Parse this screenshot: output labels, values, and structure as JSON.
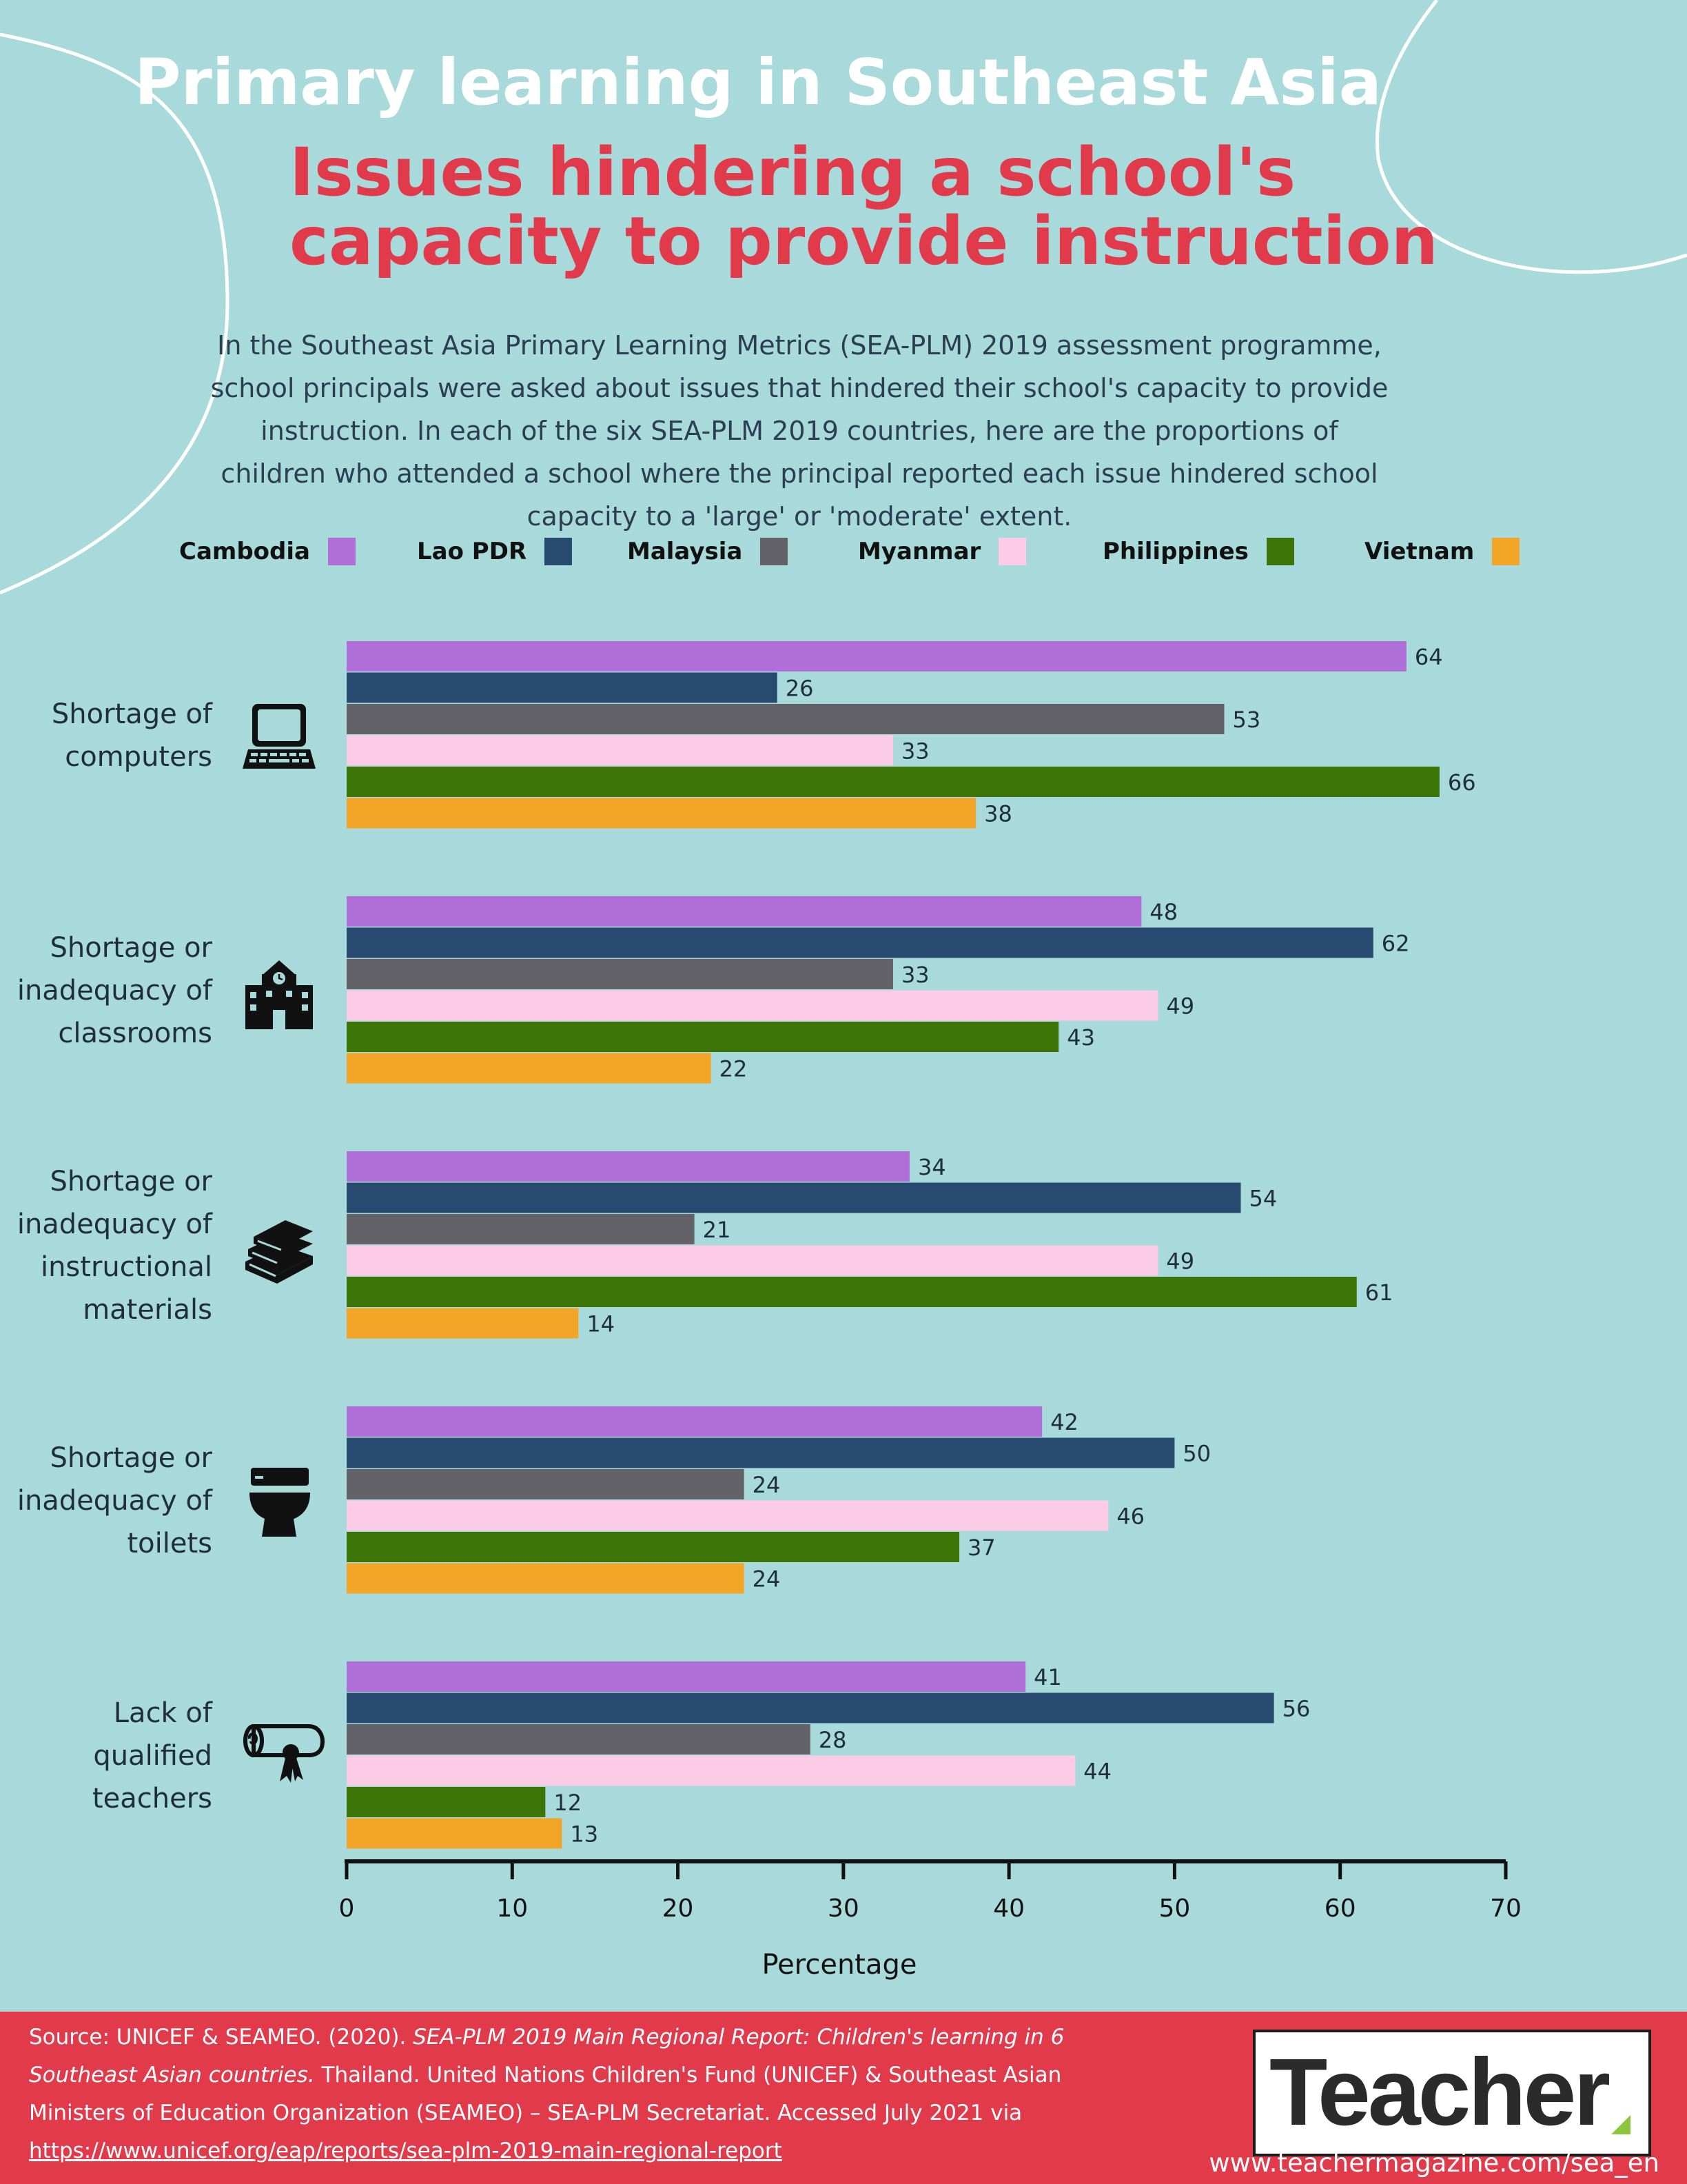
{
  "header": {
    "title": "Primary learning in Southeast Asia",
    "subtitle_line1": "Issues hindering a school's",
    "subtitle_line2": "capacity to provide instruction",
    "intro": "In the Southeast Asia Primary Learning Metrics (SEA-PLM) 2019 assessment programme, school principals were asked about issues that hindered their school's capacity to provide instruction. In each of the six SEA-PLM 2019 countries, here are the proportions of children who attended a school where the principal reported each issue hindered school capacity to a 'large' or 'moderate' extent."
  },
  "chart_data": {
    "type": "bar",
    "orientation": "horizontal",
    "title": "Issues hindering a school's capacity to provide instruction",
    "xlabel": "Percentage",
    "xlim": [
      0,
      70
    ],
    "xticks": [
      "0",
      "10",
      "20",
      "30",
      "40",
      "50",
      "60",
      "70"
    ],
    "legend_position": "top",
    "categories": [
      {
        "label": [
          "Shortage of",
          "computers"
        ],
        "icon": "laptop-icon"
      },
      {
        "label": [
          "Shortage or",
          "inadequacy of",
          "classrooms"
        ],
        "icon": "school-building-icon"
      },
      {
        "label": [
          "Shortage or",
          "inadequacy of",
          "instructional",
          "materials"
        ],
        "icon": "books-icon"
      },
      {
        "label": [
          "Shortage or",
          "inadequacy of",
          "toilets"
        ],
        "icon": "toilet-icon"
      },
      {
        "label": [
          "Lack of",
          "qualified",
          "teachers"
        ],
        "icon": "diploma-icon"
      }
    ],
    "series": [
      {
        "name": "Cambodia",
        "color": "#b06fd8",
        "values": [
          64,
          48,
          34,
          42,
          41
        ]
      },
      {
        "name": "Lao PDR",
        "color": "#284a70",
        "values": [
          26,
          62,
          54,
          50,
          56
        ]
      },
      {
        "name": "Malaysia",
        "color": "#626268",
        "values": [
          53,
          33,
          21,
          24,
          28
        ]
      },
      {
        "name": "Myanmar",
        "color": "#fccce6",
        "values": [
          33,
          49,
          49,
          46,
          44
        ]
      },
      {
        "name": "Philippines",
        "color": "#3c7408",
        "values": [
          66,
          43,
          61,
          37,
          12
        ]
      },
      {
        "name": "Vietnam",
        "color": "#f3a527",
        "values": [
          38,
          22,
          14,
          24,
          13
        ]
      }
    ]
  },
  "footer": {
    "source_prefix": "Source: UNICEF & SEAMEO. (2020). ",
    "source_title": "SEA-PLM 2019 Main Regional Report: Children's learning in 6 Southeast Asian countries.",
    "source_rest": " Thailand. United Nations Children's Fund (UNICEF) & Southeast Asian Ministers of Education Organization (SEAMEO) – SEA-PLM Secretariat. Accessed July 2021 via ",
    "source_link": "https://www.unicef.org/eap/reports/sea-plm-2019-main-regional-report",
    "logo_text": "Teacher",
    "website": "www.teachermagazine.com/sea_en"
  }
}
